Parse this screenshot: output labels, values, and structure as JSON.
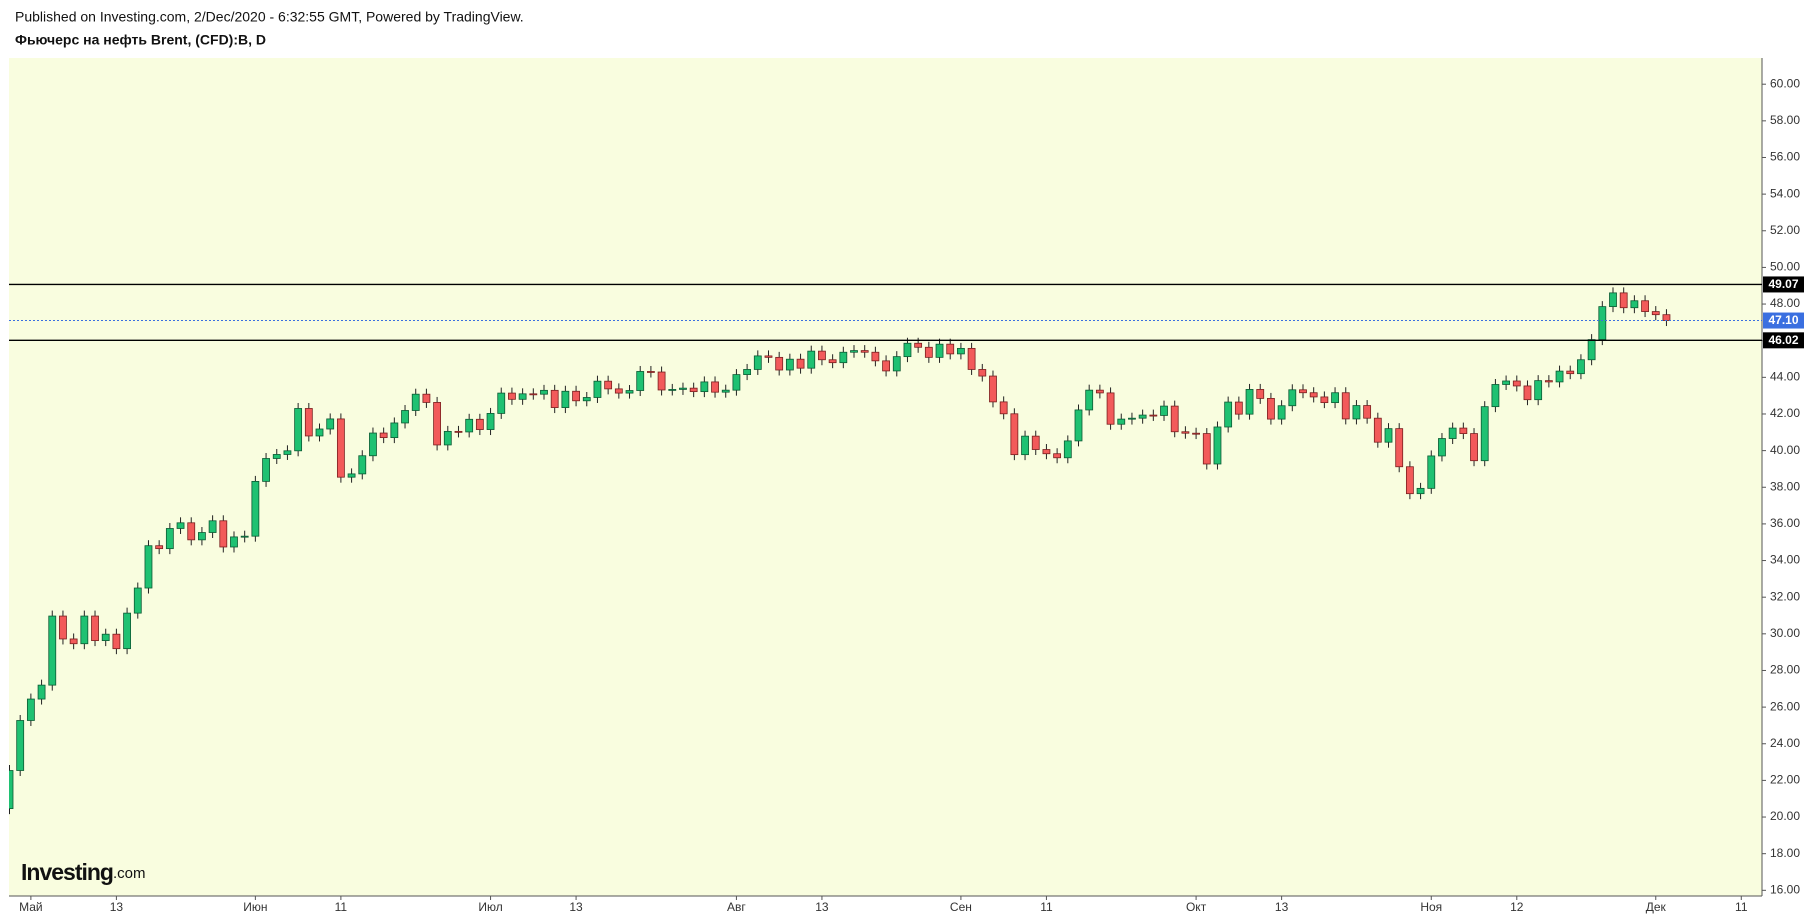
{
  "chart_data": {
    "type": "candlestick",
    "source": "Published on Investing.com, 2/Dec/2020 - 6:32:55 GMT, Powered by TradingView.",
    "title": "Фьючерс на нефть Brent, (CFD):B, D",
    "logo": "Investing",
    "logo_suffix": ".com",
    "up_color": "#1fc172",
    "down_color": "#f25a5a",
    "background": "#f9fddf",
    "grid": false,
    "ylim": [
      15.69,
      61.43
    ],
    "yticks": [
      {
        "value": 16,
        "label": "16.00"
      },
      {
        "value": 18,
        "label": "18.00"
      },
      {
        "value": 20,
        "label": "20.00"
      },
      {
        "value": 22,
        "label": "22.00"
      },
      {
        "value": 24,
        "label": "24.00"
      },
      {
        "value": 26,
        "label": "26.00"
      },
      {
        "value": 28,
        "label": "28.00"
      },
      {
        "value": 30,
        "label": "30.00"
      },
      {
        "value": 32,
        "label": "32.00"
      },
      {
        "value": 34,
        "label": "34.00"
      },
      {
        "value": 36,
        "label": "36.00"
      },
      {
        "value": 38,
        "label": "38.00"
      },
      {
        "value": 40,
        "label": "40.00"
      },
      {
        "value": 42,
        "label": "42.00"
      },
      {
        "value": 44,
        "label": "44.00"
      },
      {
        "value": 46,
        "label": "46.00"
      },
      {
        "value": 48,
        "label": "48.00"
      },
      {
        "value": 50,
        "label": "50.00"
      },
      {
        "value": 52,
        "label": "52.00"
      },
      {
        "value": 54,
        "label": "54.00"
      },
      {
        "value": 56,
        "label": "56.00"
      },
      {
        "value": 58,
        "label": "58.00"
      },
      {
        "value": 60,
        "label": "60.00"
      }
    ],
    "hlines": [
      {
        "value": 49.07,
        "color": "#000000",
        "dashed": false
      },
      {
        "value": 47.1,
        "label": "47.10",
        "color": "#3a6fe0",
        "dashed": true
      },
      {
        "value": 46.02,
        "color": "#000000",
        "dashed": false
      }
    ],
    "categories": [
      null,
      null,
      "Май",
      null,
      null,
      null,
      null,
      null,
      null,
      null,
      "13",
      null,
      null,
      null,
      null,
      null,
      null,
      null,
      null,
      null,
      null,
      null,
      null,
      "Июн",
      null,
      null,
      null,
      null,
      null,
      null,
      null,
      "11",
      null,
      null,
      null,
      null,
      null,
      null,
      null,
      null,
      null,
      null,
      null,
      null,
      null,
      "Июл",
      null,
      null,
      null,
      null,
      null,
      null,
      null,
      "13",
      null,
      null,
      null,
      null,
      null,
      null,
      null,
      null,
      null,
      null,
      null,
      null,
      null,
      null,
      "Авг",
      null,
      null,
      null,
      null,
      null,
      null,
      null,
      "13",
      null,
      null,
      null,
      null,
      null,
      null,
      null,
      null,
      null,
      null,
      null,
      null,
      "Сен",
      null,
      null,
      null,
      null,
      null,
      null,
      null,
      "11",
      null,
      null,
      null,
      null,
      null,
      null,
      null,
      null,
      null,
      null,
      null,
      null,
      null,
      "Окт",
      null,
      null,
      null,
      null,
      null,
      null,
      null,
      "13",
      null,
      null,
      null,
      null,
      null,
      null,
      null,
      null,
      null,
      null,
      null,
      null,
      null,
      "Ноя",
      null,
      null,
      null,
      null,
      null,
      null,
      null,
      "12",
      null,
      null,
      null,
      null,
      null,
      null,
      null,
      null,
      null,
      null,
      null,
      null,
      "Дек",
      null,
      null,
      null,
      null,
      null,
      null,
      null,
      "11"
    ],
    "open": [
      20.46,
      22.54,
      25.27,
      26.44,
      27.2,
      30.97,
      29.72,
      29.46,
      30.97,
      29.63,
      29.98,
      29.19,
      31.13,
      32.5,
      34.81,
      34.65,
      35.75,
      36.06,
      35.13,
      35.53,
      36.17,
      34.74,
      35.29,
      35.33,
      38.32,
      39.57,
      39.79,
      39.99,
      42.3,
      40.8,
      41.18,
      41.73,
      38.55,
      38.73,
      39.72,
      40.96,
      40.71,
      41.51,
      42.19,
      43.08,
      42.63,
      40.31,
      41.05,
      41.02,
      41.71,
      41.15,
      42.03,
      43.14,
      42.8,
      43.1,
      43.08,
      43.29,
      42.35,
      43.24,
      42.72,
      42.9,
      43.79,
      43.37,
      43.14,
      43.28,
      44.32,
      44.29,
      43.31,
      43.34,
      43.41,
      43.22,
      43.75,
      43.19,
      43.3,
      44.15,
      44.43,
      45.17,
      45.09,
      44.4,
      44.99,
      44.5,
      45.43,
      44.96,
      44.8,
      45.37,
      45.46,
      45.37,
      44.9,
      44.35,
      45.13,
      45.86,
      45.64,
      45.09,
      45.81,
      45.28,
      45.58,
      44.43,
      44.07,
      42.66,
      42.01,
      39.78,
      40.79,
      40.06,
      39.83,
      39.61,
      40.53,
      42.22,
      43.3,
      43.15,
      41.44,
      41.72,
      41.77,
      41.94,
      41.92,
      42.43,
      41.03,
      40.95,
      40.93,
      39.27,
      41.29,
      42.65,
      41.99,
      43.34,
      42.85,
      41.72,
      42.45,
      43.32,
      43.16,
      42.93,
      42.62,
      43.16,
      41.73,
      42.46,
      41.77,
      40.46,
      41.2,
      39.12,
      37.65,
      37.94,
      39.71,
      40.66,
      41.23,
      40.93,
      39.45,
      42.4,
      43.61,
      43.8,
      43.53,
      42.78,
      43.82,
      43.75,
      44.34,
      44.2,
      44.96,
      46.06,
      47.86,
      48.61,
      47.8,
      48.18,
      47.59,
      47.42,
      null,
      null,
      null,
      null,
      null,
      null,
      null
    ],
    "high": [
      22.84,
      25.57,
      26.74,
      27.5,
      31.27,
      31.27,
      30.02,
      31.27,
      31.27,
      30.28,
      30.28,
      31.43,
      32.8,
      35.11,
      35.11,
      36.05,
      36.36,
      36.36,
      35.83,
      36.47,
      36.47,
      35.59,
      35.63,
      38.62,
      39.87,
      40.09,
      40.29,
      42.6,
      42.6,
      41.48,
      42.03,
      42.03,
      39.03,
      40.02,
      41.26,
      41.26,
      41.81,
      42.49,
      43.38,
      43.38,
      42.93,
      41.35,
      41.35,
      42.01,
      42.01,
      42.33,
      43.44,
      43.44,
      43.4,
      43.4,
      43.59,
      43.59,
      43.54,
      43.54,
      43.2,
      44.09,
      44.09,
      43.67,
      43.58,
      44.62,
      44.62,
      44.59,
      43.64,
      43.71,
      43.71,
      44.05,
      44.05,
      43.6,
      44.45,
      44.73,
      45.47,
      45.47,
      45.39,
      45.29,
      45.29,
      45.73,
      45.73,
      45.26,
      45.67,
      45.76,
      45.76,
      45.67,
      45.2,
      45.43,
      46.16,
      46.16,
      45.94,
      46.11,
      46.11,
      45.88,
      45.88,
      44.73,
      44.37,
      42.96,
      42.31,
      41.09,
      41.09,
      40.36,
      40.13,
      40.83,
      42.52,
      43.6,
      43.6,
      43.45,
      42.02,
      42.07,
      42.24,
      42.24,
      42.73,
      42.73,
      41.33,
      41.25,
      41.23,
      41.59,
      42.95,
      42.95,
      43.64,
      43.64,
      43.15,
      42.75,
      43.62,
      43.62,
      43.46,
      43.23,
      43.46,
      43.46,
      42.76,
      42.76,
      42.07,
      41.5,
      41.5,
      39.42,
      38.24,
      40.01,
      40.96,
      41.53,
      41.53,
      41.23,
      42.7,
      43.91,
      44.1,
      44.1,
      43.83,
      44.12,
      44.12,
      44.64,
      44.64,
      45.26,
      46.36,
      48.16,
      48.91,
      48.91,
      48.48,
      48.48,
      47.89,
      47.72,
      null,
      null,
      null,
      null,
      null,
      null,
      null
    ],
    "low": [
      20.16,
      22.24,
      24.97,
      26.14,
      26.9,
      29.42,
      29.16,
      29.16,
      29.33,
      29.33,
      28.89,
      28.89,
      30.83,
      32.2,
      34.35,
      34.35,
      35.45,
      34.83,
      34.83,
      35.23,
      34.44,
      34.44,
      34.99,
      35.03,
      38.02,
      39.27,
      39.49,
      39.69,
      40.5,
      40.5,
      40.88,
      38.25,
      38.25,
      38.43,
      39.42,
      40.41,
      40.41,
      41.21,
      41.89,
      42.33,
      40.01,
      40.01,
      40.72,
      40.72,
      40.85,
      40.85,
      41.73,
      42.5,
      42.5,
      42.78,
      42.78,
      42.05,
      42.05,
      42.42,
      42.42,
      42.6,
      43.07,
      42.84,
      42.84,
      42.98,
      43.99,
      43.01,
      43.01,
      43.04,
      42.92,
      42.92,
      42.89,
      42.89,
      43.0,
      43.85,
      44.13,
      44.79,
      44.1,
      44.1,
      44.2,
      44.2,
      44.66,
      44.5,
      44.5,
      45.07,
      45.07,
      44.6,
      44.05,
      44.05,
      44.83,
      45.34,
      44.79,
      44.79,
      44.98,
      44.98,
      44.13,
      43.77,
      42.36,
      41.71,
      39.48,
      39.48,
      39.76,
      39.53,
      39.31,
      39.31,
      40.23,
      41.92,
      42.85,
      41.14,
      41.14,
      41.42,
      41.47,
      41.62,
      41.62,
      40.73,
      40.65,
      40.63,
      38.97,
      38.97,
      40.99,
      41.69,
      41.69,
      42.55,
      41.42,
      41.42,
      42.15,
      42.86,
      42.63,
      42.32,
      42.32,
      41.43,
      41.43,
      41.47,
      40.16,
      40.16,
      38.82,
      37.35,
      37.35,
      37.64,
      39.41,
      40.36,
      40.63,
      39.15,
      39.15,
      42.1,
      43.31,
      43.23,
      42.48,
      42.48,
      43.45,
      43.45,
      43.9,
      43.9,
      44.66,
      45.76,
      47.56,
      47.5,
      47.5,
      47.29,
      47.12,
      46.8,
      null,
      null,
      null,
      null,
      null,
      null,
      null
    ],
    "close": [
      22.54,
      25.27,
      26.44,
      27.2,
      30.97,
      29.72,
      29.46,
      30.97,
      29.63,
      29.98,
      29.19,
      31.13,
      32.5,
      34.81,
      34.65,
      35.75,
      36.06,
      35.13,
      35.53,
      36.17,
      34.74,
      35.29,
      35.33,
      38.32,
      39.57,
      39.79,
      39.99,
      42.3,
      40.8,
      41.18,
      41.73,
      38.55,
      38.73,
      39.72,
      40.96,
      40.71,
      41.51,
      42.19,
      43.08,
      42.63,
      40.31,
      41.05,
      41.02,
      41.71,
      41.15,
      42.03,
      43.14,
      42.8,
      43.1,
      43.08,
      43.29,
      42.35,
      43.24,
      42.72,
      42.9,
      43.79,
      43.37,
      43.14,
      43.28,
      44.32,
      44.29,
      43.31,
      43.34,
      43.41,
      43.22,
      43.75,
      43.19,
      43.3,
      44.15,
      44.43,
      45.17,
      45.09,
      44.4,
      44.99,
      44.5,
      45.43,
      44.96,
      44.8,
      45.37,
      45.46,
      45.37,
      44.9,
      44.35,
      45.13,
      45.86,
      45.64,
      45.09,
      45.81,
      45.28,
      45.58,
      44.43,
      44.07,
      42.66,
      42.01,
      39.78,
      40.79,
      40.06,
      39.83,
      39.61,
      40.53,
      42.22,
      43.3,
      43.15,
      41.44,
      41.72,
      41.77,
      41.94,
      41.92,
      42.43,
      41.03,
      40.95,
      40.93,
      39.27,
      41.29,
      42.65,
      41.99,
      43.34,
      42.85,
      41.72,
      42.45,
      43.32,
      43.16,
      42.93,
      42.62,
      43.16,
      41.73,
      42.46,
      41.77,
      40.46,
      41.2,
      39.12,
      37.65,
      37.94,
      39.71,
      40.66,
      41.23,
      40.93,
      39.45,
      42.4,
      43.61,
      43.8,
      43.53,
      42.78,
      43.82,
      43.75,
      44.34,
      44.2,
      44.96,
      46.06,
      47.86,
      48.61,
      47.8,
      48.18,
      47.59,
      47.42,
      47.1,
      null,
      null,
      null,
      null,
      null,
      null,
      null
    ]
  }
}
